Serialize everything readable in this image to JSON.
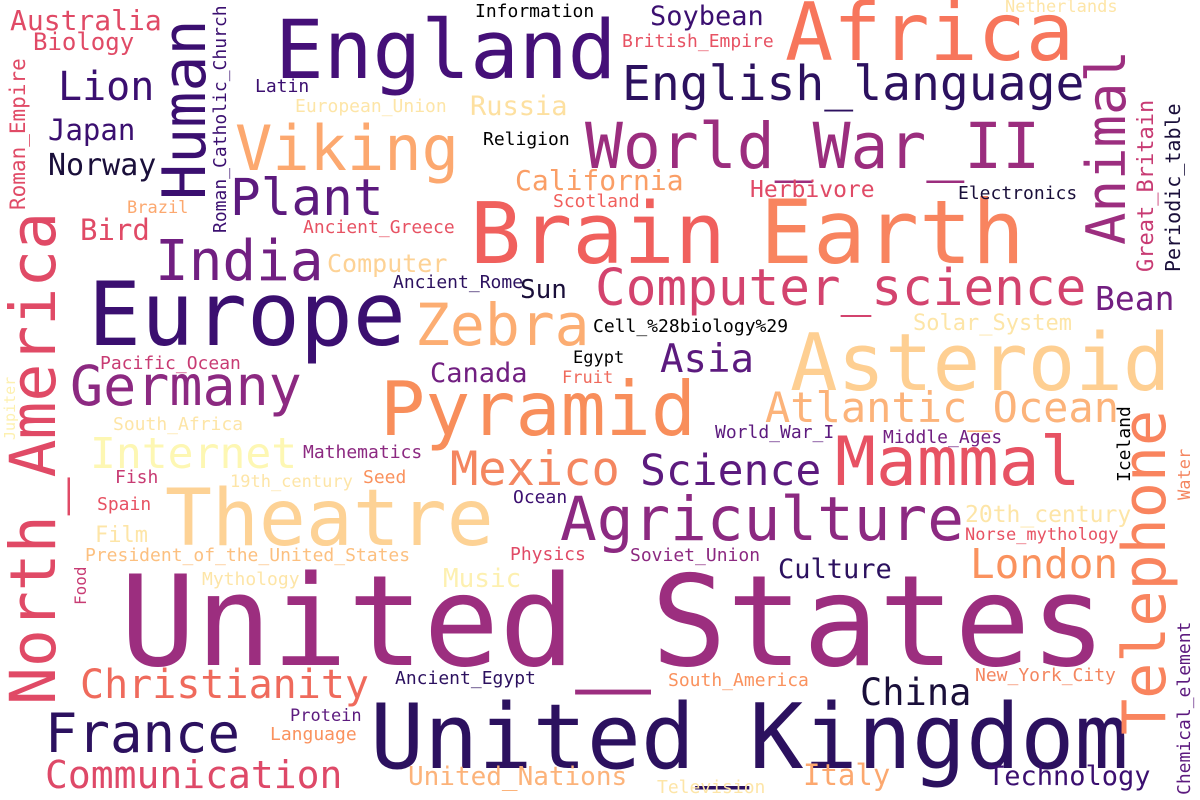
{
  "words": [
    "United_States",
    "United_Kingdom",
    "Europe",
    "England",
    "Africa",
    "Brain",
    "Earth",
    "Asteroid",
    "Pyramid",
    "Theatre",
    "Agriculture",
    "Mammal",
    "World_War_II",
    "Viking",
    "Computer_science",
    "English_language",
    "Germany",
    "India",
    "Zebra",
    "Plant",
    "Mexico",
    "Science",
    "Internet",
    "Atlantic_Ocean",
    "Communication",
    "Christianity",
    "France",
    "London",
    "China",
    "Asia",
    "Lion",
    "Bean",
    "Human",
    "Animal",
    "North_America",
    "Telephone",
    "Great_Britain",
    "Periodic_table",
    "Roman_Empire",
    "Roman_Catholic_Church",
    "Iceland",
    "Water",
    "Chemical_element",
    "Food",
    "Jupiter",
    "Australia",
    "Biology",
    "Japan",
    "Norway",
    "Bird",
    "Brazil",
    "Latin",
    "Information",
    "Soybean",
    "Netherlands",
    "British_Empire",
    "European_Union",
    "Russia",
    "Religion",
    "California",
    "Herbivore",
    "Electronics",
    "Scotland",
    "Ancient_Greece",
    "Computer",
    "Ancient_Rome",
    "Sun",
    "Cell_%28biology%29",
    "Solar_System",
    "Pacific_Ocean",
    "Egypt",
    "Fruit",
    "Canada",
    "South_Africa",
    "World_War_I",
    "Middle_Ages",
    "Mathematics",
    "Fish",
    "19th_century",
    "Seed",
    "Spain",
    "Ocean",
    "20th_century",
    "Film",
    "Norse_mythology",
    "President_of_the_United_States",
    "Physics",
    "Soviet_Union",
    "Culture",
    "Music",
    "Mythology",
    "New_York_City",
    "Ancient_Egypt",
    "South_America",
    "Protein",
    "Language",
    "United_Nations",
    "Television",
    "Italy",
    "Technology"
  ]
}
